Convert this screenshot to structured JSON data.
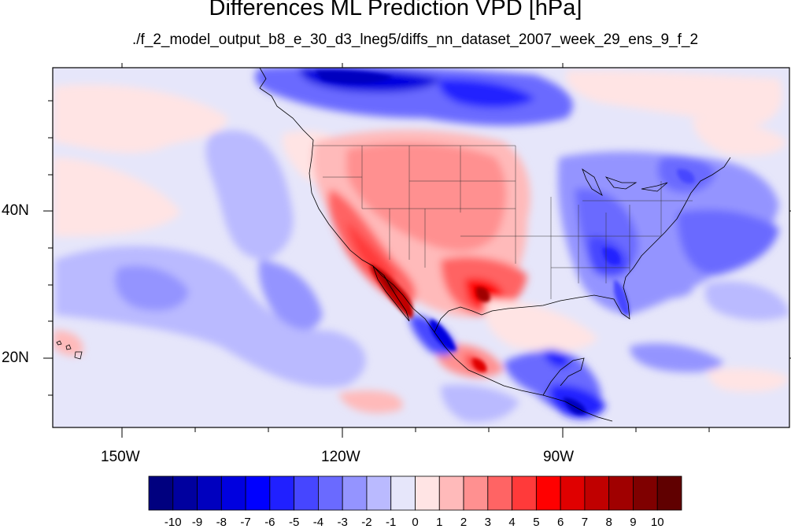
{
  "title": "Differences ML Prediction VPD [hPa]",
  "subtitle": "./f_2_model_output_b8_e_30_d3_lneg5/diffs_nn_dataset_2007_week_29_ens_9_f_2",
  "map": {
    "projection": "cylindrical-equidistant",
    "lon_range": [
      -160,
      -62
    ],
    "lat_range": [
      10,
      59
    ],
    "lat_labels": [
      "20N",
      "40N"
    ],
    "lon_labels": [
      "150W",
      "120W",
      "90W"
    ],
    "background_color": "#e6e6fa"
  },
  "colorbar": {
    "labels": [
      "-10",
      "-9",
      "-8",
      "-7",
      "-6",
      "-5",
      "-4",
      "-3",
      "-2",
      "-1",
      "0",
      "1",
      "2",
      "3",
      "4",
      "5",
      "6",
      "7",
      "8",
      "9",
      "10"
    ],
    "colors": [
      "#00007f",
      "#00009f",
      "#0000bf",
      "#0000df",
      "#0000ff",
      "#2020ff",
      "#4646ff",
      "#6a6aff",
      "#9494ff",
      "#babaff",
      "#e6e6fa",
      "#ffe4e4",
      "#ffbaba",
      "#ff9090",
      "#ff6464",
      "#ff3a3a",
      "#ff0000",
      "#e00000",
      "#c00000",
      "#a00000",
      "#7f0000",
      "#600000"
    ]
  }
}
